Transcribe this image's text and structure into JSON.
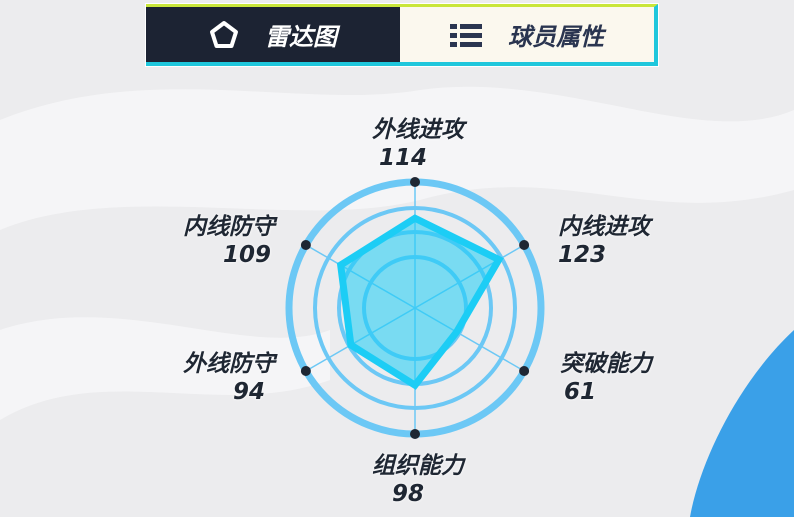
{
  "tabs": [
    {
      "label": "雷达图",
      "icon": "pentagon-icon",
      "active": true
    },
    {
      "label": "球员属性",
      "icon": "list-icon",
      "active": false
    }
  ],
  "colors": {
    "accent": "#1ccdf5",
    "ring": "#6cc8f5",
    "dark": "#1c2333"
  },
  "chart_data": {
    "type": "radar",
    "axes": [
      "外线进攻",
      "内线进攻",
      "突破能力",
      "组织能力",
      "外线防守",
      "内线防守"
    ],
    "values": [
      114,
      123,
      61,
      98,
      94,
      109
    ],
    "range": [
      0,
      160
    ]
  }
}
